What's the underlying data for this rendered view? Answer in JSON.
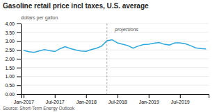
{
  "chart_data": {
    "type": "line",
    "title": "Gasoline retail price incl taxes, U.S. average",
    "y_label": "dollars per gallon",
    "source": "Source: Short-Term Energy Outlook",
    "categories": [
      "Jan-2017",
      null,
      null,
      null,
      null,
      null,
      "Jul-2017",
      null,
      null,
      null,
      null,
      null,
      "Jan-2018",
      null,
      null,
      null,
      null,
      null,
      "Jul-2018",
      null,
      null,
      null,
      null,
      null,
      "Jan-2019",
      null,
      null,
      null,
      null,
      null,
      "Jul-2019",
      null,
      null,
      null,
      null,
      null
    ],
    "values": [
      2.48,
      2.4,
      2.36,
      2.44,
      2.52,
      2.46,
      2.41,
      2.57,
      2.68,
      2.58,
      2.5,
      2.44,
      2.42,
      2.52,
      2.6,
      2.72,
      3.02,
      3.08,
      2.9,
      2.82,
      2.75,
      2.6,
      2.72,
      2.8,
      2.82,
      2.88,
      2.92,
      2.82,
      2.78,
      2.9,
      2.9,
      2.85,
      2.75,
      2.62,
      2.58,
      2.56
    ],
    "color": "#29a8e0",
    "ylim": [
      0.0,
      4.0
    ],
    "yticks": [
      {
        "value": 0.0,
        "label": "0.00"
      },
      {
        "value": 0.5,
        "label": "0.50"
      },
      {
        "value": 1.0,
        "label": "1.00"
      },
      {
        "value": 1.5,
        "label": "1.50"
      },
      {
        "value": 2.0,
        "label": "2.00"
      },
      {
        "value": 2.5,
        "label": "2.50"
      },
      {
        "value": 3.0,
        "label": "3.00"
      },
      {
        "value": 3.5,
        "label": "3.50"
      },
      {
        "value": 4.0,
        "label": "4.00"
      }
    ],
    "grid": true,
    "annotations": [
      {
        "text": "projections",
        "x": 16,
        "y": 3.65
      }
    ]
  }
}
